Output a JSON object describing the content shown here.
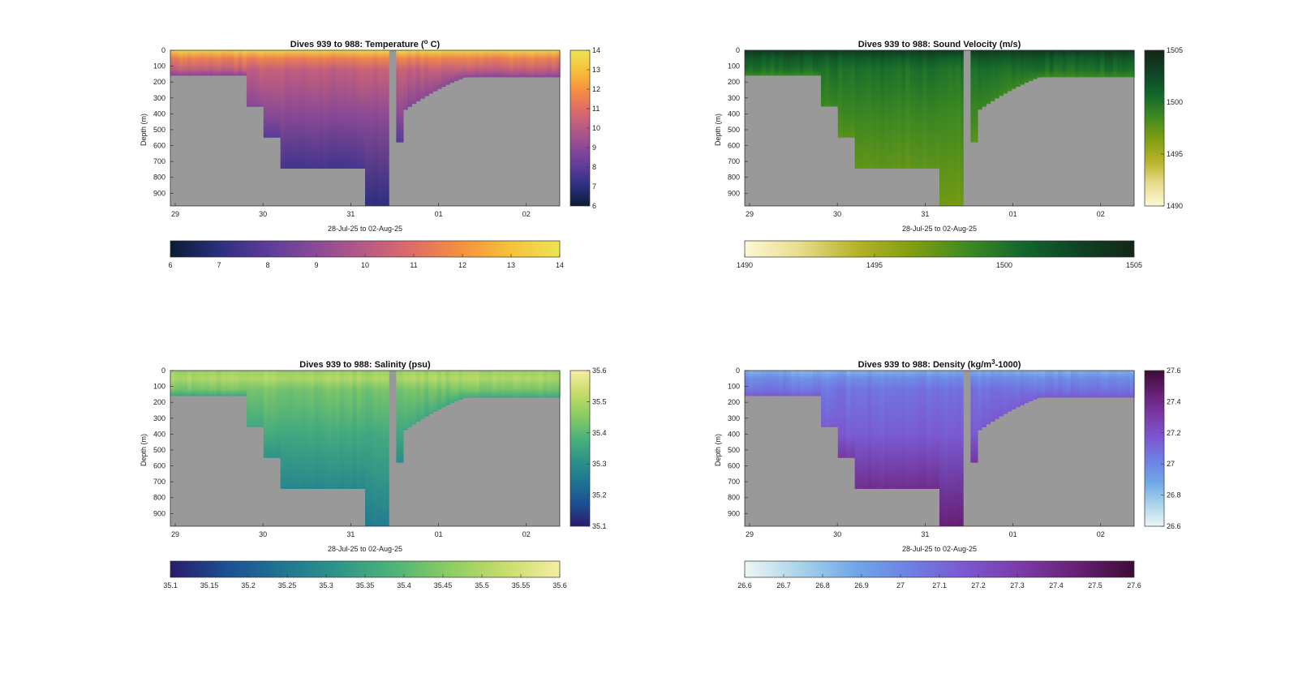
{
  "figure": {
    "background": "#ffffff",
    "land_color": "#999999"
  },
  "chart_data": [
    {
      "type": "heatmap",
      "title_main": "Dives 939 to 988: Temperature (",
      "title_sup": "o",
      "title_end": " C)",
      "xlabel": "28-Jul-25 to 02-Aug-25",
      "ylabel": "Depth (m)",
      "x_ticks": [
        "29",
        "30",
        "31",
        "01",
        "02"
      ],
      "y_ticks": [
        "0",
        "100",
        "200",
        "300",
        "400",
        "500",
        "600",
        "700",
        "800",
        "900"
      ],
      "ylim": [
        0,
        980
      ],
      "clim": [
        6,
        14
      ],
      "colormap": [
        "#0a1c33",
        "#2b2f7e",
        "#5d3c9b",
        "#8b4a95",
        "#b75a85",
        "#e06d66",
        "#f5923d",
        "#f7c23a",
        "#ece354"
      ],
      "vertical_cbar_ticks": [
        "6",
        "7",
        "8",
        "9",
        "10",
        "11",
        "12",
        "13",
        "14"
      ],
      "horizontal_cbar_ticks": [
        "6",
        "7",
        "8",
        "9",
        "10",
        "11",
        "12",
        "13",
        "14"
      ],
      "surface_value": 13.6,
      "mix_value": 11.6,
      "deep_value": 9.0,
      "bottom_value": 7.0,
      "mixed_layer_depth": 100
    },
    {
      "type": "heatmap",
      "title_main": "Dives 939 to 988: Sound Velocity (m/s)",
      "title_sup": "",
      "title_end": "",
      "xlabel": "28-Jul-25 to 02-Aug-25",
      "ylabel": "Depth (m)",
      "x_ticks": [
        "29",
        "30",
        "31",
        "01",
        "02"
      ],
      "y_ticks": [
        "0",
        "100",
        "200",
        "300",
        "400",
        "500",
        "600",
        "700",
        "800",
        "900"
      ],
      "ylim": [
        0,
        980
      ],
      "clim": [
        1490,
        1505
      ],
      "colormap": [
        "#fdf8d6",
        "#e8dc8c",
        "#b7b32a",
        "#819e10",
        "#3f8a22",
        "#12672c",
        "#0f4324",
        "#142617"
      ],
      "vertical_cbar_ticks": [
        "1490",
        "1495",
        "1500",
        "1505"
      ],
      "horizontal_cbar_ticks": [
        "1490",
        "1495",
        "1500",
        "1505"
      ],
      "surface_value": 1503.6,
      "mix_value": 1501.5,
      "deep_value": 1498.8,
      "bottom_value": 1497.0,
      "mixed_layer_depth": 100
    },
    {
      "type": "heatmap",
      "title_main": "Dives 939 to 988: Salinity (psu)",
      "title_sup": "",
      "title_end": "",
      "xlabel": "28-Jul-25 to 02-Aug-25",
      "ylabel": "Depth (m)",
      "x_ticks": [
        "29",
        "30",
        "31",
        "01",
        "02"
      ],
      "y_ticks": [
        "0",
        "100",
        "200",
        "300",
        "400",
        "500",
        "600",
        "700",
        "800",
        "900"
      ],
      "ylim": [
        0,
        980
      ],
      "clim": [
        35.1,
        35.6
      ],
      "colormap": [
        "#2a1b6b",
        "#1c4f92",
        "#1f7592",
        "#2d9588",
        "#4eb37a",
        "#8bcc63",
        "#c6dd6a",
        "#f6eda3"
      ],
      "vertical_cbar_ticks": [
        "35.1",
        "35.2",
        "35.3",
        "35.4",
        "35.5",
        "35.6"
      ],
      "horizontal_cbar_ticks": [
        "35.1",
        "35.15",
        "35.2",
        "35.25",
        "35.3",
        "35.35",
        "35.4",
        "35.45",
        "35.5",
        "35.55",
        "35.6"
      ],
      "surface_value": 35.47,
      "mix_value": 35.5,
      "deep_value": 35.36,
      "bottom_value": 35.26,
      "mixed_layer_depth": 100
    },
    {
      "type": "heatmap",
      "title_main": "Dives 939 to 988: Density (kg/m",
      "title_sup": "3",
      "title_end": "-1000)",
      "xlabel": "28-Jul-25 to 02-Aug-25",
      "ylabel": "Depth (m)",
      "x_ticks": [
        "29",
        "30",
        "31",
        "01",
        "02"
      ],
      "y_ticks": [
        "0",
        "100",
        "200",
        "300",
        "400",
        "500",
        "600",
        "700",
        "800",
        "900"
      ],
      "ylim": [
        0,
        980
      ],
      "clim": [
        26.6,
        27.6
      ],
      "colormap": [
        "#eef6f6",
        "#a9d3ea",
        "#6fa6e8",
        "#6e7fe4",
        "#7b56d0",
        "#7a3aa6",
        "#661f73",
        "#3c0c34"
      ],
      "vertical_cbar_ticks": [
        "26.6",
        "26.8",
        "27",
        "27.2",
        "27.4",
        "27.6"
      ],
      "horizontal_cbar_ticks": [
        "26.6",
        "26.7",
        "26.8",
        "26.9",
        "27",
        "27.1",
        "27.2",
        "27.3",
        "27.4",
        "27.5",
        "27.6"
      ],
      "surface_value": 26.85,
      "mix_value": 26.98,
      "deep_value": 27.15,
      "bottom_value": 27.45,
      "mixed_layer_depth": 100
    }
  ]
}
